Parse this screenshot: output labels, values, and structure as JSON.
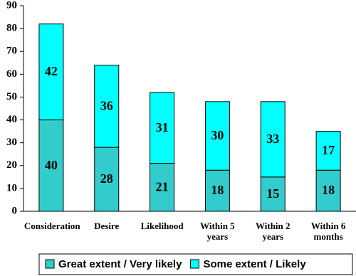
{
  "chart_data": {
    "type": "stacked-bar",
    "categories": [
      "Consideration",
      "Desire",
      "Likelihood",
      "Within 5 years",
      "Within 2 years",
      "Within 6 months"
    ],
    "series": [
      {
        "name": "Great extent / Very likely",
        "color": "#33cccc",
        "values": [
          40,
          28,
          21,
          18,
          15,
          18
        ]
      },
      {
        "name": "Some extent / Likely",
        "color": "#00ffff",
        "values": [
          42,
          36,
          31,
          30,
          33,
          17
        ]
      }
    ],
    "ylim": [
      0,
      90
    ],
    "yticks": [
      0,
      10,
      20,
      30,
      40,
      50,
      60,
      70,
      80,
      90
    ]
  }
}
